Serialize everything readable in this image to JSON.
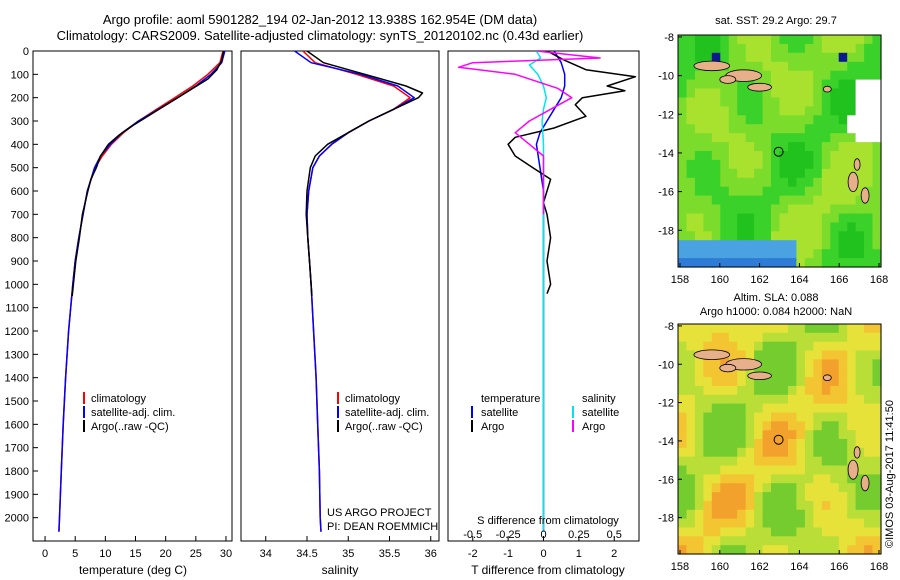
{
  "header": {
    "line1": "Argo profile: aoml 5901282_194 02-Jan-2012 13.938S 162.954E (DM data)",
    "line2": "Climatology: CARS2009. Satellite-adjusted climatology: synTS_20120102.nc (0.43d earlier)"
  },
  "colors": {
    "climatology": "#ff0000",
    "satellite": "#0000ff",
    "argo": "#000000",
    "salinity_satellite": "#00e5ee",
    "salinity_argo": "#ff00ff"
  },
  "chart_data": [
    {
      "type": "line",
      "id": "temperature",
      "xlabel": "temperature (deg C)",
      "ylabel": "",
      "xlim": [
        -2,
        31
      ],
      "ylim": [
        2100,
        0
      ],
      "xticks": [
        "0",
        "5",
        "10",
        "15",
        "20",
        "25",
        "30"
      ],
      "yticks": [
        "0",
        "100",
        "200",
        "300",
        "400",
        "500",
        "600",
        "700",
        "800",
        "900",
        "1000",
        "1100",
        "1200",
        "1300",
        "1400",
        "1500",
        "1600",
        "1700",
        "1800",
        "1900",
        "2000"
      ],
      "legend": [
        "climatology",
        "satellite-adj. clim.",
        "Argo(..raw -QC)"
      ],
      "series": [
        {
          "name": "climatology",
          "pressure": [
            0,
            50,
            100,
            150,
            200,
            250,
            300,
            350,
            400,
            450,
            500,
            600,
            700,
            800,
            900,
            1000,
            1200,
            1400,
            1600,
            1800,
            2000,
            2060
          ],
          "values": [
            29.5,
            29.0,
            27.0,
            24.5,
            21.5,
            18.5,
            15.5,
            13.0,
            11.0,
            9.5,
            8.3,
            7.0,
            6.3,
            5.6,
            5.0,
            4.6,
            3.9,
            3.4,
            3.0,
            2.7,
            2.4,
            2.3
          ]
        },
        {
          "name": "satellite-adj. clim.",
          "pressure": [
            0,
            50,
            100,
            150,
            200,
            250,
            300,
            350,
            400,
            450,
            500,
            600,
            700,
            800,
            900,
            1000,
            1200,
            1400,
            1600,
            1800,
            2000,
            2060
          ],
          "values": [
            29.8,
            29.3,
            27.5,
            25.0,
            22.0,
            18.8,
            15.5,
            12.8,
            10.8,
            9.2,
            8.2,
            7.0,
            6.3,
            5.6,
            5.0,
            4.6,
            3.9,
            3.4,
            3.0,
            2.7,
            2.4,
            2.3
          ]
        },
        {
          "name": "Argo(..raw -QC)",
          "pressure": [
            0,
            40,
            80,
            120,
            160,
            200,
            240,
            280,
            320,
            360,
            400,
            450,
            500,
            550,
            600,
            700,
            800,
            900,
            1000,
            1050
          ],
          "values": [
            29.6,
            29.3,
            28.5,
            27.0,
            24.5,
            22.0,
            19.5,
            17.0,
            14.5,
            12.3,
            10.5,
            9.2,
            8.5,
            7.6,
            7.1,
            6.2,
            5.7,
            5.1,
            4.7,
            4.5
          ]
        }
      ]
    },
    {
      "type": "line",
      "id": "salinity",
      "xlabel": "salinity",
      "xlim": [
        33.7,
        36.1
      ],
      "ylim": [
        2100,
        0
      ],
      "xticks": [
        "34",
        "34.5",
        "35",
        "35.5",
        "36"
      ],
      "legend": [
        "climatology",
        "satellite-adj. clim.",
        "Argo(..raw -QC)"
      ],
      "annotation": [
        "US ARGO PROJECT",
        "PI: DEAN ROEMMICH"
      ],
      "series": [
        {
          "name": "climatology",
          "pressure": [
            0,
            50,
            100,
            150,
            200,
            250,
            300,
            350,
            400,
            450,
            500,
            600,
            700,
            800,
            900,
            1000,
            1200,
            1400,
            1600,
            1800,
            2000,
            2060
          ],
          "values": [
            34.45,
            34.6,
            35.1,
            35.55,
            35.75,
            35.55,
            35.25,
            35.0,
            34.8,
            34.65,
            34.57,
            34.52,
            34.5,
            34.51,
            34.53,
            34.55,
            34.58,
            34.61,
            34.63,
            34.65,
            34.66,
            34.67
          ]
        },
        {
          "name": "satellite-adj. clim.",
          "pressure": [
            0,
            50,
            100,
            150,
            200,
            250,
            300,
            350,
            400,
            450,
            500,
            600,
            700,
            800,
            900,
            1000,
            1200,
            1400,
            1600,
            1800,
            2000,
            2060
          ],
          "values": [
            34.35,
            34.55,
            35.15,
            35.6,
            35.8,
            35.55,
            35.25,
            35.0,
            34.8,
            34.65,
            34.57,
            34.52,
            34.5,
            34.51,
            34.53,
            34.55,
            34.58,
            34.61,
            34.63,
            34.65,
            34.66,
            34.67
          ]
        },
        {
          "name": "Argo(..raw -QC)",
          "pressure": [
            0,
            50,
            100,
            150,
            180,
            200,
            250,
            300,
            350,
            400,
            450,
            500,
            600,
            700,
            800,
            900,
            1000,
            1050
          ],
          "values": [
            34.5,
            34.7,
            35.2,
            35.7,
            35.9,
            35.85,
            35.55,
            35.25,
            35.0,
            34.75,
            34.6,
            34.54,
            34.5,
            34.49,
            34.51,
            34.53,
            34.55,
            34.56
          ]
        }
      ]
    },
    {
      "type": "line",
      "id": "differences",
      "xlabel": "T difference from climatology",
      "xlabel_top": "S difference from climatology",
      "xlim": [
        -2.7,
        2.7
      ],
      "ylim": [
        2100,
        0
      ],
      "xticks_T": [
        "-2",
        "-1",
        "0",
        "1",
        "2"
      ],
      "xticks_S": [
        "-0.5",
        "-0.25",
        "0",
        "0.25",
        "0.5"
      ],
      "legend": [
        "temperature",
        "satellite",
        "Argo",
        "salinity",
        "satellite",
        "Argo"
      ],
      "series": [
        {
          "name": "T satellite",
          "pressure": [
            0,
            50,
            100,
            150,
            200,
            250,
            300,
            350,
            400,
            500,
            600,
            700,
            800,
            1000,
            1200,
            1600,
            2000,
            2060
          ],
          "values": [
            0.3,
            0.5,
            0.6,
            0.6,
            0.5,
            0.3,
            0.1,
            -0.1,
            -0.2,
            -0.1,
            0.0,
            0.0,
            0.0,
            0.0,
            0.0,
            0.0,
            0.0,
            0.0
          ]
        },
        {
          "name": "T Argo",
          "pressure": [
            0,
            40,
            80,
            110,
            150,
            170,
            200,
            230,
            280,
            330,
            370,
            400,
            450,
            500,
            550,
            600,
            650,
            700,
            800,
            900,
            1000,
            1040
          ],
          "values": [
            0.1,
            0.6,
            1.2,
            2.6,
            1.8,
            2.3,
            1.1,
            0.9,
            1.2,
            0.3,
            -0.8,
            -1.0,
            -0.8,
            -0.3,
            0.2,
            0.1,
            0.0,
            0.1,
            0.2,
            0.1,
            0.2,
            0.1
          ]
        },
        {
          "name": "S satellite",
          "pressure": [
            0,
            30,
            60,
            100,
            150,
            200,
            250,
            300,
            400,
            500,
            700,
            1000,
            1500,
            2000,
            2060
          ],
          "values": [
            -0.05,
            -0.02,
            -0.1,
            -0.04,
            0.0,
            0.02,
            0.0,
            -0.01,
            0.0,
            0.0,
            0.0,
            0.0,
            0.0,
            0.0,
            0.0
          ]
        },
        {
          "name": "S Argo",
          "pressure": [
            0,
            30,
            50,
            70,
            100,
            130,
            160,
            200,
            250,
            300,
            350,
            400,
            450,
            500,
            550,
            600,
            650,
            700
          ],
          "values": [
            -0.05,
            0.4,
            -0.5,
            -0.6,
            -0.2,
            -0.05,
            0.1,
            0.2,
            0.05,
            -0.1,
            -0.2,
            -0.1,
            0.0,
            0.0,
            0.0,
            0.0,
            0.0,
            0.0
          ]
        }
      ]
    }
  ],
  "maps": {
    "sst": {
      "title": "sat. SST: 29.2 Argo: 29.7",
      "xticks": [
        "158",
        "160",
        "162",
        "164",
        "166",
        "168"
      ],
      "yticks": [
        "-8",
        "-10",
        "-12",
        "-14",
        "-16",
        "-18"
      ]
    },
    "sla": {
      "title1": "Altim. SLA: 0.088",
      "title2": "Argo h1000: 0.084 h2000: NaN",
      "xticks": [
        "158",
        "160",
        "162",
        "164",
        "166",
        "168"
      ],
      "yticks": [
        "-8",
        "-10",
        "-12",
        "-14",
        "-16",
        "-18"
      ]
    },
    "profile_lon": 162.954,
    "profile_lat": -13.938,
    "lon_range": [
      157.9,
      168.1
    ],
    "lat_range": [
      -19.9,
      -7.9
    ]
  },
  "footer": {
    "stamp": "©IMOS 03-Aug-2017 11:41:50"
  }
}
